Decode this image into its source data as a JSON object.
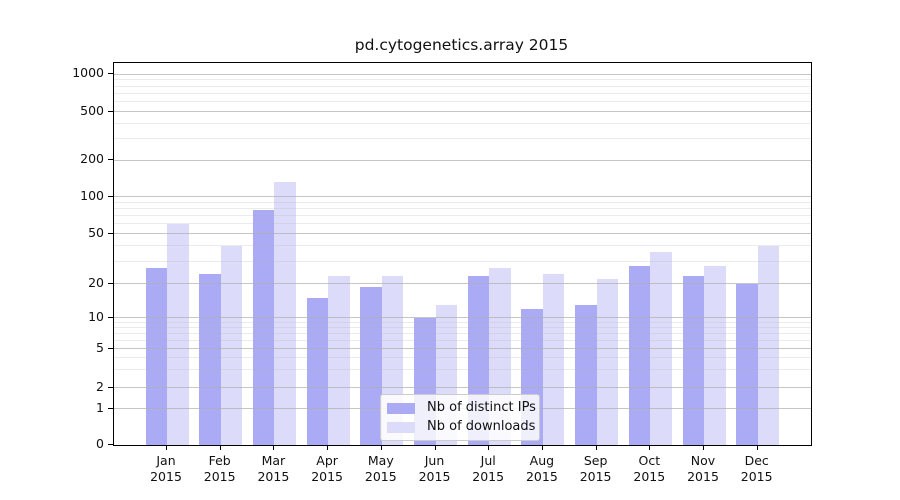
{
  "title": "pd.cytogenetics.array 2015",
  "chart_data": {
    "type": "bar",
    "title": "pd.cytogenetics.array 2015",
    "xlabel": "",
    "ylabel": "",
    "y_scale": "log-like (0 baseline with 1-2-5 decade ticks)",
    "y_ticks": [
      0,
      1,
      2,
      5,
      10,
      20,
      50,
      100,
      200,
      500,
      1000
    ],
    "ylim": [
      0,
      1200
    ],
    "grid": true,
    "legend_position": "lower center",
    "categories": [
      "Jan 2015",
      "Feb 2015",
      "Mar 2015",
      "Apr 2015",
      "May 2015",
      "Jun 2015",
      "Jul 2015",
      "Aug 2015",
      "Sep 2015",
      "Oct 2015",
      "Nov 2015",
      "Dec 2015"
    ],
    "series": [
      {
        "name": "Nb of distinct IPs",
        "color": "#aaaaf5",
        "values": [
          27,
          24,
          78,
          15,
          19,
          10,
          23,
          12,
          13,
          28,
          23,
          20
        ]
      },
      {
        "name": "Nb of downloads",
        "color": "#dcdcfa",
        "values": [
          60,
          40,
          134,
          23,
          23,
          13,
          27,
          24,
          22,
          36,
          28,
          40
        ]
      }
    ]
  }
}
